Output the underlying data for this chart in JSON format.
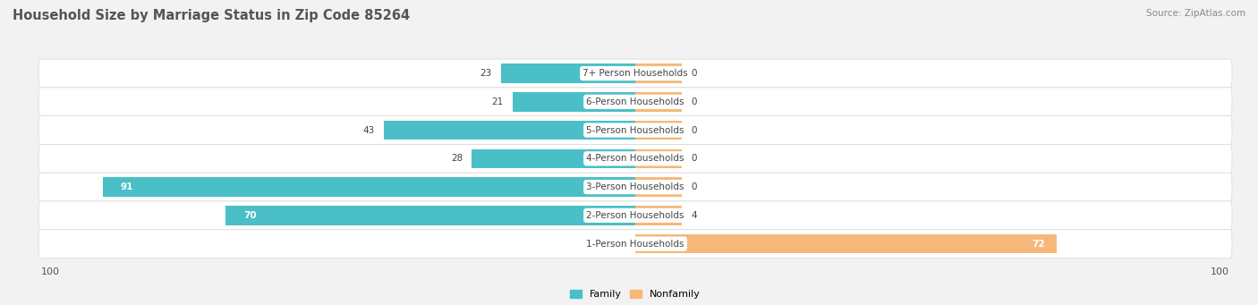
{
  "title": "Household Size by Marriage Status in Zip Code 85264",
  "source": "Source: ZipAtlas.com",
  "categories": [
    "7+ Person Households",
    "6-Person Households",
    "5-Person Households",
    "4-Person Households",
    "3-Person Households",
    "2-Person Households",
    "1-Person Households"
  ],
  "family_values": [
    23,
    21,
    43,
    28,
    91,
    70,
    0
  ],
  "nonfamily_values": [
    0,
    0,
    0,
    0,
    0,
    4,
    72
  ],
  "family_color": "#4BBFC7",
  "nonfamily_color": "#F5B87A",
  "xlim": 100,
  "background_color": "#f2f2f2",
  "row_bg_color": "#ffffff",
  "sep_color": "#d8d8d8",
  "title_fontsize": 10.5,
  "label_fontsize": 7.5,
  "value_fontsize": 7.5,
  "source_fontsize": 7.5,
  "tick_fontsize": 8,
  "min_nonfamily_bar": 8,
  "min_family_bar": 8
}
